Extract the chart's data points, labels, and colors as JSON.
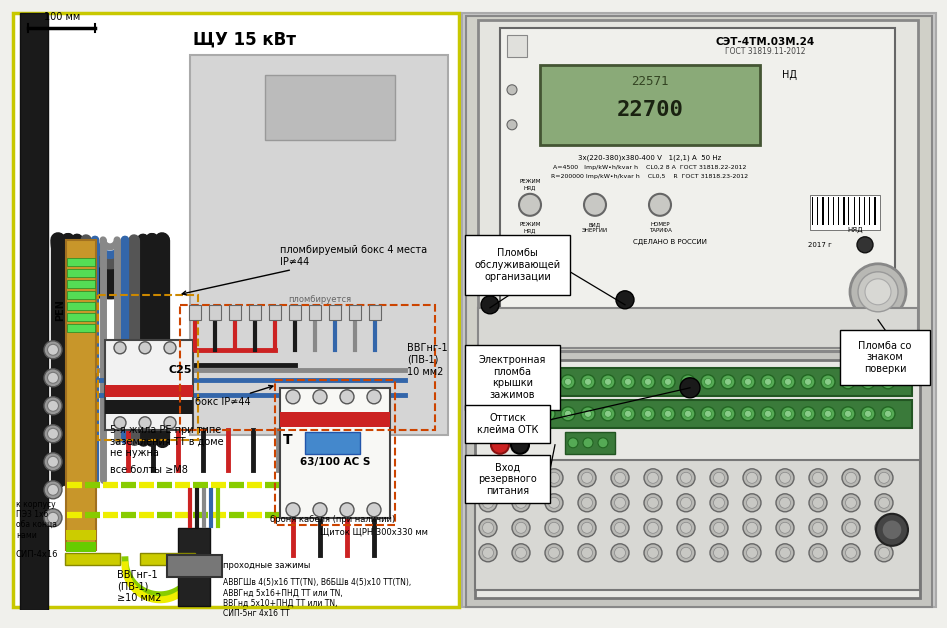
{
  "bg_color": "#f0f0ec",
  "title_left": "ЩУ 15 кВт",
  "scale_label": "100 мм",
  "pen_label": "PEN",
  "annotation_box1_text": "пломбируемый бокс 4 места\nIP≄44",
  "annotation_plomb": "пломбируется",
  "annotation_vvg": "ВВГнг-1\n(ПВ-1)\n10 мм2",
  "annotation_boks": "бокс IP≄44",
  "annotation_5wire": "5-я жила PE при типе\nзаземления ТТ в доме\nне нужна",
  "annotation_bolts": "все болты ≥М8",
  "annotation_breaker": "63/100 AC S",
  "annotation_bottom_cable": "ВВГнг-1\n(ПВ-1)\n≥10 мм2",
  "annotation_cables": "АВВГШв 4(5)х16 ТТ(TN), ВбБШв 4(5)х10 ТТ(TN),\nАВВГнд 5х16+ПНД ТТ или TN,\nВВГнд 5х10+ПНД ТТ или TN,\nСИП-5нг 4х16 ТТ",
  "annotation_pass": "проходные зажимы",
  "annotation_armor": "броня кабеля (при наличии)",
  "annotation_щит": "Щиток ЩРН 300х330 мм",
  "annotation_sip": "СИП-4х16",
  "annotation_small": "к корпусу\nПЭ3 1х6\nоба конца\nнами",
  "right_label1": "Пломбы\nобслуживающей\nорганизации",
  "right_label2": "Электронная\nпломба\nкрышки\nзажимов",
  "right_label3": "Пломба со\nзнаком\nповерки",
  "right_label4": "Оттиск\nклейма ОТК",
  "right_label5": "Вход\nрезервного\nпитания",
  "meter_model": "СЭТ-4ТМ.03М.24",
  "meter_gost": "ГОСТ 31819.11-2012",
  "T_label": "T"
}
